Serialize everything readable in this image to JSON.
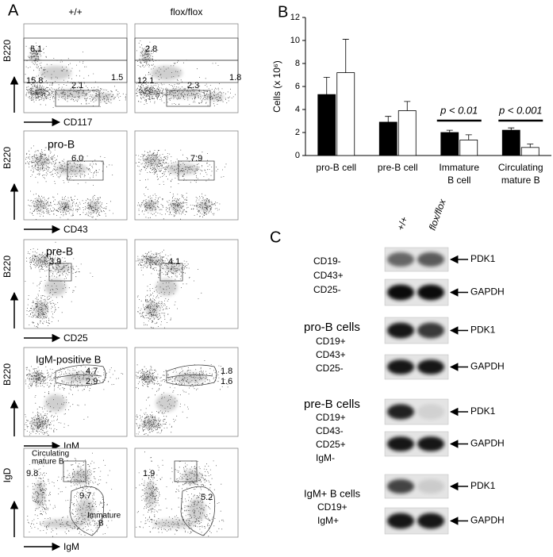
{
  "panel_a": {
    "label": "A",
    "columns": [
      "+/+",
      "flox/flox"
    ],
    "rows": [
      {
        "y_axis": "B220",
        "x_axis": "CD117",
        "left": [
          "6.1",
          "15.8",
          "2.1",
          "1.5"
        ],
        "right": [
          "2.8",
          "12.1",
          "2.3",
          "1.8"
        ]
      },
      {
        "y_axis": "B220",
        "x_axis": "CD43",
        "left": [
          "pro-B",
          "6.0"
        ],
        "right": [
          "7.9"
        ]
      },
      {
        "y_axis": "B220",
        "x_axis": "CD25",
        "left": [
          "pre-B",
          "3.9"
        ],
        "right": [
          "4.1"
        ]
      },
      {
        "y_axis": "B220",
        "x_axis": "IgM",
        "left": [
          "IgM-positive B",
          "4.7",
          "2.9"
        ],
        "right": [
          "1.8",
          "1.6"
        ]
      },
      {
        "y_axis": "IgD",
        "x_axis": "IgM",
        "left": [
          "Circulating",
          "mature B",
          "9.8",
          "9.7",
          "Immature",
          "B"
        ],
        "right": [
          "1.9",
          "5.2"
        ]
      }
    ]
  },
  "chart_data": {
    "type": "bar",
    "label": "B",
    "y_label": "Cells (x 10⁶)",
    "categories": [
      "pro-B cell",
      "pre-B cell",
      "Immature B cell",
      "Circulating mature B"
    ],
    "series": [
      {
        "color": "#000000",
        "values": [
          5.3,
          2.9,
          2.0,
          2.2
        ],
        "errors": [
          1.5,
          0.5,
          0.2,
          0.2
        ]
      },
      {
        "color": "#ffffff",
        "values": [
          7.2,
          3.9,
          1.35,
          0.7
        ],
        "errors": [
          2.9,
          0.8,
          0.45,
          0.3
        ]
      }
    ],
    "annotations": [
      "p < 0.01",
      "p < 0.001"
    ],
    "ylim": [
      0,
      12
    ],
    "yticks": [
      0,
      2,
      4,
      6,
      8,
      10,
      12
    ]
  },
  "panel_c": {
    "label": "C",
    "lanes": [
      "+/+",
      "flox/flox"
    ],
    "blocks": [
      {
        "title": null,
        "lines": [
          "CD19-",
          "CD43+",
          "CD25-"
        ],
        "bands": [
          "PDK1",
          "GAPDH"
        ]
      },
      {
        "title": "pro-B cells",
        "lines": [
          "CD19+",
          "CD43+",
          "CD25-"
        ],
        "bands": [
          "PDK1",
          "GAPDH"
        ]
      },
      {
        "title": "pre-B cells",
        "lines": [
          "CD19+",
          "CD43-",
          "CD25+",
          "IgM-"
        ],
        "bands": [
          "PDK1",
          "GAPDH"
        ]
      },
      {
        "title": "IgM+ B cells",
        "lines": [
          "CD19+",
          "IgM+"
        ],
        "bands": [
          "PDK1",
          "GAPDH"
        ]
      }
    ]
  }
}
